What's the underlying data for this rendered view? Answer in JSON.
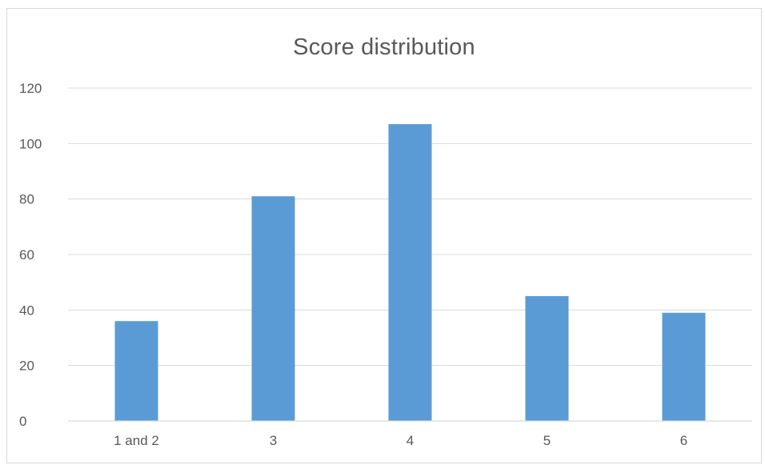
{
  "chart_data": {
    "type": "bar",
    "title": "Score distribution",
    "xlabel": "",
    "ylabel": "",
    "categories": [
      "1 and 2",
      "3",
      "4",
      "5",
      "6"
    ],
    "values": [
      36,
      81,
      107,
      45,
      39
    ],
    "ylim": [
      0,
      120
    ],
    "yticks": [
      0,
      20,
      40,
      60,
      80,
      100,
      120
    ],
    "grid": true,
    "legend": "none",
    "bar_color": "#5b9bd5",
    "grid_color": "#d9d9d9",
    "text_color": "#595959"
  }
}
